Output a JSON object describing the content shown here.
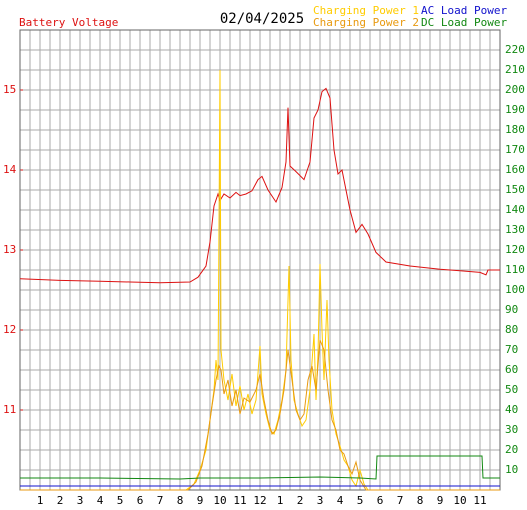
{
  "chart_data": {
    "type": "line",
    "title": "02/04/2025",
    "xlim": [
      0,
      24
    ],
    "xticks": [
      1,
      2,
      3,
      4,
      5,
      6,
      7,
      8,
      9,
      10,
      11,
      12,
      {
        "value": 13,
        "label": "1"
      },
      {
        "value": 14,
        "label": "2"
      },
      {
        "value": 15,
        "label": "3"
      },
      {
        "value": 16,
        "label": "4"
      },
      {
        "value": 17,
        "label": "5"
      },
      {
        "value": 18,
        "label": "6"
      },
      {
        "value": 19,
        "label": "7"
      },
      {
        "value": 20,
        "label": "8"
      },
      {
        "value": 21,
        "label": "9"
      },
      {
        "value": 22,
        "label": "10"
      },
      {
        "value": 23,
        "label": "11"
      }
    ],
    "ylim": [
      10,
      15.75
    ],
    "yticks": [
      11,
      12,
      13,
      14,
      15
    ],
    "y2lim": [
      0,
      230
    ],
    "y2ticks": [
      10,
      20,
      30,
      40,
      50,
      60,
      70,
      80,
      90,
      100,
      110,
      120,
      130,
      140,
      150,
      160,
      170,
      180,
      190,
      200,
      210,
      220
    ],
    "grid": true,
    "series": [
      {
        "name": "Battery Voltage",
        "color": "#dd1111",
        "axis": "y",
        "x": [
          0,
          2,
          4,
          5.5,
          7,
          8.5,
          8.9,
          9.3,
          9.5,
          9.7,
          9.9,
          10,
          10.2,
          10.5,
          10.8,
          11,
          11.3,
          11.6,
          11.9,
          12.1,
          12.4,
          12.8,
          13.1,
          13.3,
          13.4,
          13.5,
          13.8,
          14.2,
          14.5,
          14.7,
          14.9,
          15.1,
          15.3,
          15.5,
          15.7,
          15.9,
          16.1,
          16.3,
          16.5,
          16.8,
          17.1,
          17.4,
          17.8,
          18.3,
          19.5,
          21,
          22,
          23,
          23.3,
          23.4,
          24
        ],
        "values": [
          12.64,
          12.62,
          12.61,
          12.6,
          12.59,
          12.6,
          12.66,
          12.8,
          13.1,
          13.55,
          13.7,
          13.62,
          13.7,
          13.65,
          13.72,
          13.68,
          13.7,
          13.74,
          13.88,
          13.92,
          13.75,
          13.6,
          13.78,
          14.1,
          14.78,
          14.05,
          13.98,
          13.88,
          14.1,
          14.65,
          14.75,
          14.98,
          15.02,
          14.9,
          14.25,
          13.95,
          14.0,
          13.75,
          13.5,
          13.22,
          13.32,
          13.2,
          12.97,
          12.85,
          12.8,
          12.76,
          12.74,
          12.72,
          12.69,
          12.75,
          12.75
        ]
      },
      {
        "name": "Charging Power 1",
        "color": "#ffcc00",
        "axis": "y2",
        "x": [
          0,
          8.3,
          8.7,
          9,
          9.3,
          9.5,
          9.7,
          9.8,
          9.9,
          10.0,
          10.05,
          10.2,
          10.4,
          10.6,
          10.8,
          11,
          11.2,
          11.4,
          11.6,
          11.8,
          12,
          12.1,
          12.3,
          12.5,
          12.7,
          12.9,
          13.1,
          13.3,
          13.45,
          13.55,
          13.7,
          13.9,
          14.1,
          14.3,
          14.5,
          14.7,
          14.8,
          14.9,
          15.0,
          15.1,
          15.2,
          15.35,
          15.45,
          15.6,
          15.8,
          16.0,
          16.2,
          16.4,
          16.6,
          16.8,
          17.0,
          17.2,
          17.4,
          24
        ],
        "values": [
          0,
          0,
          3,
          10,
          20,
          35,
          50,
          65,
          55,
          210,
          70,
          55,
          45,
          58,
          42,
          52,
          40,
          48,
          38,
          45,
          72,
          48,
          38,
          30,
          28,
          35,
          45,
          60,
          112,
          65,
          45,
          38,
          32,
          35,
          50,
          78,
          45,
          68,
          113,
          80,
          55,
          95,
          65,
          40,
          28,
          22,
          15,
          12,
          5,
          2,
          10,
          3,
          0,
          0
        ]
      },
      {
        "name": "Charging Power 2",
        "color": "#e89a10",
        "axis": "y2",
        "x": [
          0,
          8.4,
          8.8,
          9.1,
          9.4,
          9.6,
          9.8,
          9.95,
          10.05,
          10.2,
          10.4,
          10.6,
          10.8,
          11,
          11.2,
          11.5,
          11.8,
          12.0,
          12.2,
          12.4,
          12.6,
          12.8,
          13.0,
          13.2,
          13.4,
          13.6,
          13.8,
          14.0,
          14.2,
          14.4,
          14.6,
          14.8,
          15.0,
          15.2,
          15.4,
          15.6,
          15.8,
          16.0,
          16.2,
          16.4,
          16.6,
          16.8,
          17.0,
          17.3,
          24
        ],
        "values": [
          0,
          0,
          4,
          12,
          28,
          42,
          55,
          62,
          60,
          48,
          55,
          42,
          50,
          38,
          46,
          44,
          50,
          58,
          45,
          35,
          28,
          30,
          38,
          50,
          70,
          55,
          40,
          35,
          38,
          55,
          62,
          50,
          75,
          70,
          50,
          35,
          30,
          20,
          18,
          12,
          8,
          14,
          5,
          0,
          0
        ]
      },
      {
        "name": "AC Load Power",
        "color": "#1111cc",
        "axis": "y2",
        "x": [
          0,
          6,
          12,
          18,
          24
        ],
        "values": [
          2,
          2,
          2,
          2,
          2
        ]
      },
      {
        "name": "DC Load Power",
        "color": "#118811",
        "axis": "y2",
        "x": [
          0,
          4,
          8,
          9,
          12,
          15,
          17,
          17.8,
          17.85,
          23.1,
          23.15,
          24
        ],
        "values": [
          6,
          6,
          5.5,
          6,
          6,
          6.5,
          6,
          5.5,
          17,
          17,
          6,
          6
        ]
      }
    ]
  }
}
